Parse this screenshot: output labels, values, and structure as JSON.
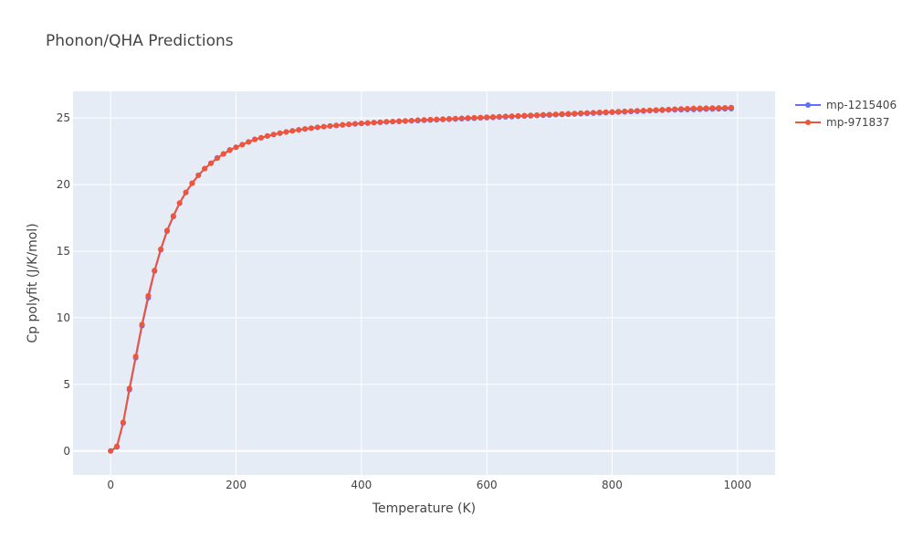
{
  "chart_data": {
    "type": "line",
    "title": "Phonon/QHA Predictions",
    "xlabel": "Temperature (K)",
    "ylabel": "Cp polyfit (J/K/mol)",
    "xlim": [
      -60,
      1060
    ],
    "ylim": [
      -1.8,
      27.0
    ],
    "xticks": [
      0,
      200,
      400,
      600,
      800,
      1000
    ],
    "yticks": [
      0,
      5,
      10,
      15,
      20,
      25
    ],
    "grid": true,
    "legend_position": "top-right",
    "background": "#e5ecf6",
    "series": [
      {
        "name": "mp-1215406",
        "color": "#636efa",
        "x": [
          0,
          10,
          20,
          30,
          40,
          50,
          60,
          70,
          80,
          90,
          100,
          110,
          120,
          130,
          140,
          150,
          160,
          170,
          180,
          190,
          200,
          210,
          220,
          230,
          240,
          250,
          260,
          270,
          280,
          290,
          300,
          310,
          320,
          330,
          340,
          350,
          360,
          370,
          380,
          390,
          400,
          410,
          420,
          430,
          440,
          450,
          460,
          470,
          480,
          490,
          500,
          510,
          520,
          530,
          540,
          550,
          560,
          570,
          580,
          590,
          600,
          610,
          620,
          630,
          640,
          650,
          660,
          670,
          680,
          690,
          700,
          710,
          720,
          730,
          740,
          750,
          760,
          770,
          780,
          790,
          800,
          810,
          820,
          830,
          840,
          850,
          860,
          870,
          880,
          890,
          900,
          910,
          920,
          930,
          940,
          950,
          960,
          970,
          980,
          990
        ],
        "y": [
          0,
          0.3,
          2.1,
          4.6,
          7.0,
          9.4,
          11.5,
          13.5,
          15.1,
          16.5,
          17.6,
          18.6,
          19.4,
          20.1,
          20.7,
          21.2,
          21.6,
          22.0,
          22.3,
          22.6,
          22.8,
          23.0,
          23.2,
          23.4,
          23.5,
          23.65,
          23.75,
          23.85,
          23.95,
          24.03,
          24.1,
          24.17,
          24.23,
          24.29,
          24.34,
          24.39,
          24.43,
          24.47,
          24.51,
          24.55,
          24.58,
          24.61,
          24.64,
          24.67,
          24.7,
          24.72,
          24.74,
          24.76,
          24.78,
          24.8,
          24.82,
          24.84,
          24.86,
          24.88,
          24.9,
          24.92,
          24.94,
          24.96,
          24.98,
          25.0,
          25.02,
          25.04,
          25.06,
          25.08,
          25.1,
          25.12,
          25.14,
          25.16,
          25.18,
          25.2,
          25.22,
          25.24,
          25.26,
          25.28,
          25.3,
          25.32,
          25.34,
          25.36,
          25.38,
          25.4,
          25.42,
          25.44,
          25.46,
          25.48,
          25.5,
          25.52,
          25.54,
          25.56,
          25.58,
          25.6,
          25.61,
          25.62,
          25.63,
          25.64,
          25.65,
          25.66,
          25.67,
          25.68,
          25.69,
          25.7
        ]
      },
      {
        "name": "mp-971837",
        "color": "#ef553b",
        "x": [
          0,
          10,
          20,
          30,
          40,
          50,
          60,
          70,
          80,
          90,
          100,
          110,
          120,
          130,
          140,
          150,
          160,
          170,
          180,
          190,
          200,
          210,
          220,
          230,
          240,
          250,
          260,
          270,
          280,
          290,
          300,
          310,
          320,
          330,
          340,
          350,
          360,
          370,
          380,
          390,
          400,
          410,
          420,
          430,
          440,
          450,
          460,
          470,
          480,
          490,
          500,
          510,
          520,
          530,
          540,
          550,
          560,
          570,
          580,
          590,
          600,
          610,
          620,
          630,
          640,
          650,
          660,
          670,
          680,
          690,
          700,
          710,
          720,
          730,
          740,
          750,
          760,
          770,
          780,
          790,
          800,
          810,
          820,
          830,
          840,
          850,
          860,
          870,
          880,
          890,
          900,
          910,
          920,
          930,
          940,
          950,
          960,
          970,
          980,
          990
        ],
        "y": [
          0,
          0.35,
          2.15,
          4.7,
          7.1,
          9.5,
          11.65,
          13.55,
          15.15,
          16.55,
          17.65,
          18.62,
          19.42,
          20.1,
          20.7,
          21.2,
          21.6,
          21.98,
          22.3,
          22.58,
          22.8,
          23.0,
          23.2,
          23.38,
          23.52,
          23.65,
          23.76,
          23.86,
          23.95,
          24.03,
          24.11,
          24.18,
          24.24,
          24.3,
          24.35,
          24.4,
          24.45,
          24.49,
          24.53,
          24.57,
          24.6,
          24.63,
          24.66,
          24.69,
          24.72,
          24.74,
          24.77,
          24.79,
          24.81,
          24.84,
          24.86,
          24.88,
          24.9,
          24.92,
          24.94,
          24.96,
          24.98,
          25.0,
          25.02,
          25.04,
          25.06,
          25.08,
          25.1,
          25.12,
          25.14,
          25.16,
          25.18,
          25.2,
          25.22,
          25.24,
          25.26,
          25.28,
          25.3,
          25.32,
          25.34,
          25.36,
          25.38,
          25.4,
          25.42,
          25.44,
          25.46,
          25.48,
          25.5,
          25.52,
          25.54,
          25.56,
          25.58,
          25.6,
          25.62,
          25.64,
          25.66,
          25.68,
          25.7,
          25.72,
          25.73,
          25.74,
          25.75,
          25.76,
          25.77,
          25.78
        ]
      }
    ]
  }
}
